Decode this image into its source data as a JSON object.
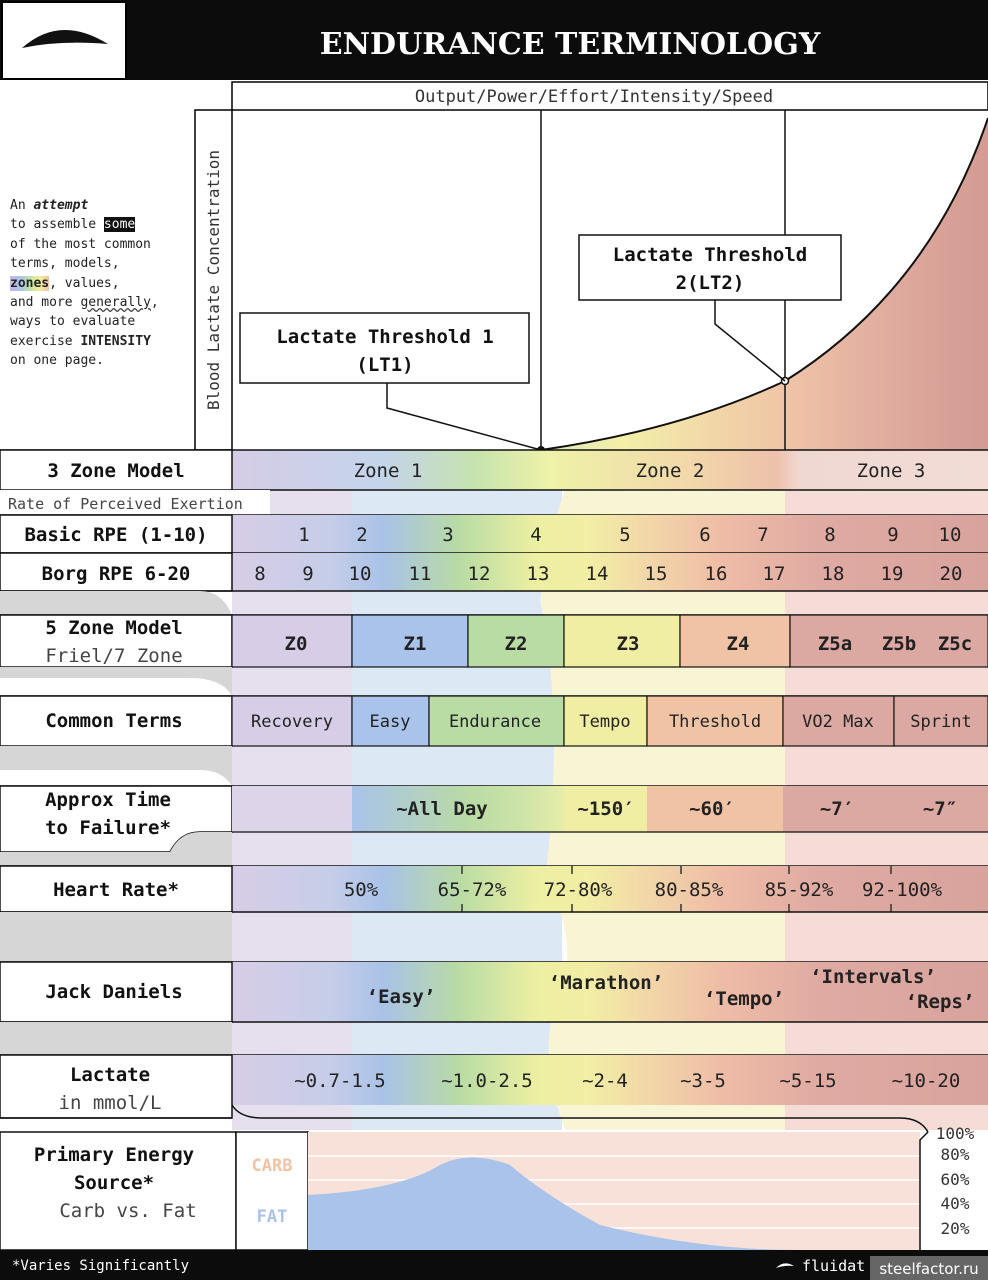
{
  "header": {
    "title": "ENDURANCE TERMINOLOGY",
    "logo_icon": "swoosh-logo-icon"
  },
  "axes": {
    "x_label": "Output/Power/Effort/Intensity/Speed",
    "y_label": "Blood Lactate Concentration"
  },
  "intro": {
    "t1": "An ",
    "t2": "attempt",
    "t3": "to assemble ",
    "t4": "some",
    "t5": "of the most common",
    "t6": "terms, models,",
    "t7": "zones",
    "t8": ", values,",
    "t9": "and more ",
    "t10": "generally",
    "t11": ",",
    "t12": "ways to evaluate",
    "t13": "exercise ",
    "t14": "INTENSITY",
    "t15": "on one page."
  },
  "thresholds": {
    "lt1": [
      "Lactate Threshold 1",
      "(LT1)"
    ],
    "lt2": [
      "Lactate Threshold",
      "2(LT2)"
    ]
  },
  "rows": {
    "zone3_label": "3 Zone Model",
    "zone3": [
      "Zone 1",
      "Zone 2",
      "Zone 3"
    ],
    "rpe_header": "Rate of Perceived Exertion",
    "basic_rpe_label": "Basic RPE (1-10)",
    "basic_rpe": [
      "1",
      "2",
      "3",
      "4",
      "5",
      "6",
      "7",
      "8",
      "9",
      "10"
    ],
    "borg_label": "Borg RPE 6-20",
    "borg": [
      "8",
      "9",
      "10",
      "11",
      "12",
      "13",
      "14",
      "15",
      "16",
      "17",
      "18",
      "19",
      "20"
    ],
    "zone5_label": [
      "5 Zone Model",
      "Friel/7 Zone"
    ],
    "zone5": [
      "Z0",
      "Z1",
      "Z2",
      "Z3",
      "Z4",
      "Z5a",
      "Z5b",
      "Z5c"
    ],
    "terms_label": "Common Terms",
    "terms": [
      "Recovery",
      "Easy",
      "Endurance",
      "Tempo",
      "Threshold",
      "VO2 Max",
      "Sprint"
    ],
    "ttf_label": [
      "Approx Time",
      "to Failure*"
    ],
    "ttf": [
      "~All Day",
      "~150′",
      "~60′",
      "~7′",
      "~7″"
    ],
    "hr_label": "Heart Rate*",
    "hr": [
      "50%",
      "65-72%",
      "72-80%",
      "80-85%",
      "85-92%",
      "92-100%"
    ],
    "jd_label": "Jack Daniels",
    "jd": [
      "‘Easy’",
      "‘Marathon’",
      "‘Tempo’",
      "‘Intervals’",
      "‘Reps’"
    ],
    "lactate_label": [
      "Lactate",
      "in mmol/L"
    ],
    "lactate": [
      "~0.7-1.5",
      "~1.0-2.5",
      "~2-4",
      "~3-5",
      "~5-15",
      "~10-20"
    ],
    "energy_label": [
      "Primary Energy",
      "Source*",
      "Carb vs. Fat"
    ],
    "carb": "CARB",
    "fat": "FAT",
    "percent_ticks": [
      "100%",
      "80%",
      "60%",
      "40%",
      "20%"
    ]
  },
  "footer": {
    "note": "*Varies Significantly",
    "brand": "fluidat",
    "watermark": "steelfactor.ru"
  },
  "colors": {
    "purple": "#cdc1e3",
    "blue": "#a5c1e8",
    "green": "#b7dda2",
    "yellow": "#f1eea3",
    "orange": "#f1c0a4",
    "red": "#dcaaa3",
    "curve_fill": "#d5a097"
  }
}
